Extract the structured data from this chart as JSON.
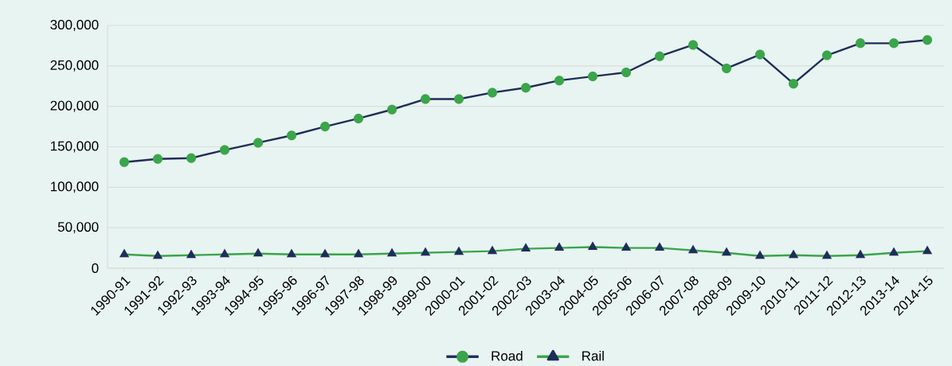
{
  "chart_data": {
    "type": "line",
    "categories": [
      "1990-91",
      "1991-92",
      "1992-93",
      "1993-94",
      "1994-95",
      "1995-96",
      "1996-97",
      "1997-98",
      "1998-99",
      "1999-00",
      "2000-01",
      "2001-02",
      "2002-03",
      "2003-04",
      "2004-05",
      "2005-06",
      "2006-07",
      "2007-08",
      "2008-09",
      "2009-10",
      "2010-11",
      "2011-12",
      "2012-13",
      "2013-14",
      "2014-15"
    ],
    "series": [
      {
        "name": "Road",
        "color": "#1f2d5a",
        "marker": "circle",
        "colors": [
          "#3aa54a",
          "#3aa54a",
          "#3aa54a",
          "#3aa54a",
          "#3aa54a",
          "#3aa54a",
          "#3aa54a",
          "#3aa54a",
          "#3aa54a",
          "#3aa54a",
          "#3aa54a",
          "#3aa54a",
          "#3aa54a",
          "#3aa54a",
          "#3aa54a",
          "#3aa54a",
          "#3aa54a",
          "#3aa54a",
          "#3aa54a",
          "#3aa54a",
          "#3aa54a",
          "#3aa54a",
          "#3aa54a",
          "#3aa54a",
          "#3aa54a"
        ],
        "values": [
          131000,
          135000,
          136000,
          146000,
          155000,
          164000,
          175000,
          185000,
          196000,
          209000,
          209000,
          217000,
          223000,
          232000,
          237000,
          242000,
          262000,
          276000,
          247000,
          264000,
          228000,
          263000,
          278000,
          278000,
          282000
        ]
      },
      {
        "name": "Rail",
        "color": "#3aa54a",
        "marker": "triangle",
        "colors": [
          "#1f2d5a",
          "#1f2d5a",
          "#1f2d5a",
          "#1f2d5a",
          "#1f2d5a",
          "#1f2d5a",
          "#1f2d5a",
          "#1f2d5a",
          "#1f2d5a",
          "#1f2d5a",
          "#1f2d5a",
          "#1f2d5a",
          "#1f2d5a",
          "#1f2d5a",
          "#1f2d5a",
          "#1f2d5a",
          "#1f2d5a",
          "#1f2d5a",
          "#1f2d5a",
          "#1f2d5a",
          "#1f2d5a",
          "#1f2d5a",
          "#1f2d5a",
          "#1f2d5a",
          "#1f2d5a"
        ],
        "values": [
          17000,
          15000,
          16000,
          17000,
          18000,
          17000,
          17000,
          17000,
          18000,
          19000,
          20000,
          21000,
          24000,
          25000,
          26000,
          25000,
          25000,
          22000,
          19000,
          15000,
          16000,
          15000,
          16000,
          19000,
          21000
        ]
      }
    ],
    "ylim": [
      0,
      300000
    ],
    "yticks": [
      {
        "value": 0,
        "label": "0"
      },
      {
        "value": 50000,
        "label": "50,000"
      },
      {
        "value": 100000,
        "label": "100,000"
      },
      {
        "value": 150000,
        "label": "150,000"
      },
      {
        "value": 200000,
        "label": "200,000"
      },
      {
        "value": 250000,
        "label": "250,000"
      },
      {
        "value": 300000,
        "label": "300,000"
      }
    ],
    "grid": "y",
    "legend": "bottom"
  }
}
